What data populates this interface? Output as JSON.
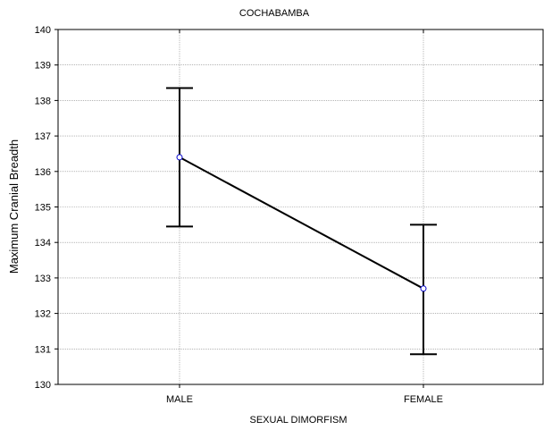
{
  "chart_data": {
    "type": "line",
    "title": "COCHABAMBA",
    "xlabel": "SEXUAL DIMORFISM",
    "ylabel": "Maximum Cranial Breadth",
    "categories": [
      "MALE",
      "FEMALE"
    ],
    "series": [
      {
        "values": [
          136.4,
          132.7
        ],
        "error_lower": [
          134.45,
          130.85
        ],
        "error_upper": [
          138.35,
          134.5
        ]
      }
    ],
    "ylim": [
      130,
      140
    ],
    "yticks": [
      130,
      131,
      132,
      133,
      134,
      135,
      136,
      137,
      138,
      139,
      140
    ],
    "grid": true,
    "colors": {
      "line": "#000000",
      "marker_stroke": "#0000cc",
      "marker_fill": "#ffffff",
      "grid": "#888888"
    }
  }
}
